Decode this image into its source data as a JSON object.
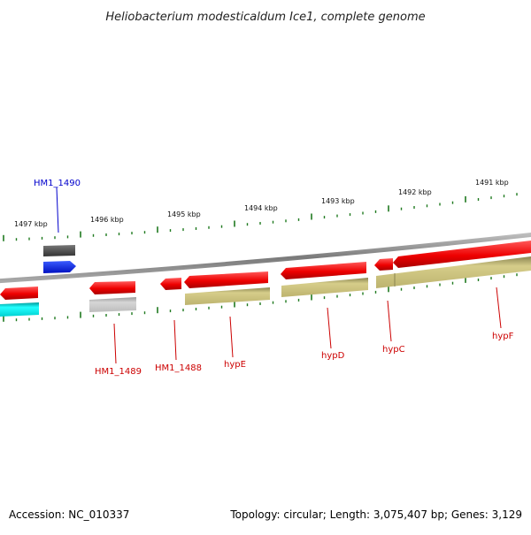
{
  "title": "Heliobacterium modesticaldum Ice1, complete genome",
  "accession": "Accession: NC_010337",
  "topology": "Topology: circular; Length: 3,075,407 bp; Genes: 3,129",
  "ticks": [
    {
      "label": "1497 kbp"
    },
    {
      "label": "1496 kbp"
    },
    {
      "label": "1495 kbp"
    },
    {
      "label": "1494 kbp"
    },
    {
      "label": "1493 kbp"
    },
    {
      "label": "1492 kbp"
    },
    {
      "label": "1491 kbp"
    }
  ],
  "genes": [
    {
      "label": "HM1_1490",
      "color": "#0000cc"
    },
    {
      "label": "HM1_1489",
      "color": "#cc0000"
    },
    {
      "label": "HM1_1488",
      "color": "#cc0000"
    },
    {
      "label": "hypE",
      "color": "#cc0000"
    },
    {
      "label": "hypD",
      "color": "#cc0000"
    },
    {
      "label": "hypC",
      "color": "#cc0000"
    },
    {
      "label": "hypF",
      "color": "#cc0000"
    }
  ],
  "colors": {
    "backbone": "#8a8a8a",
    "cds_red": "#ee0000",
    "cds_blue": "#0022ee",
    "cds_gray_dark": "#555555",
    "cds_gray_light": "#c0c0c0",
    "cds_cyan": "#00e5e5",
    "feature_olive": "#c8bf78",
    "tick_green": "#1f7a1f"
  }
}
